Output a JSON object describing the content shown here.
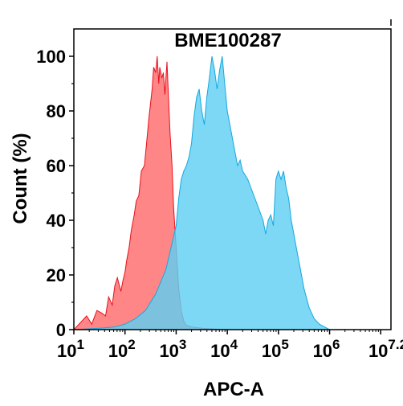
{
  "chart_data": {
    "type": "area",
    "title": "BME100287",
    "xlabel": "APC-A",
    "ylabel": "Count (%)",
    "x_scale": "log",
    "xlim": [
      1,
      7.2
    ],
    "ylim": [
      0,
      110
    ],
    "x_ticks": [
      {
        "value": 1,
        "base": "10",
        "exp": "1"
      },
      {
        "value": 2,
        "base": "10",
        "exp": "2"
      },
      {
        "value": 3,
        "base": "10",
        "exp": "3"
      },
      {
        "value": 4,
        "base": "10",
        "exp": "4"
      },
      {
        "value": 5,
        "base": "10",
        "exp": "5"
      },
      {
        "value": 6,
        "base": "10",
        "exp": "6"
      },
      {
        "value": 7.2,
        "base": "10",
        "exp": "7.2"
      }
    ],
    "y_ticks": [
      "0",
      "20",
      "40",
      "60",
      "80",
      "100"
    ],
    "series": [
      {
        "color": "#ff6b6b",
        "stroke": "#e8101a",
        "x": [
          1.0,
          1.1,
          1.25,
          1.35,
          1.45,
          1.55,
          1.62,
          1.68,
          1.75,
          1.8,
          1.85,
          1.92,
          1.96,
          2.0,
          2.03,
          2.08,
          2.12,
          2.18,
          2.22,
          2.27,
          2.32,
          2.38,
          2.42,
          2.47,
          2.5,
          2.53,
          2.56,
          2.6,
          2.63,
          2.66,
          2.68,
          2.72,
          2.75,
          2.78,
          2.82,
          2.85,
          2.88,
          2.92,
          2.95,
          3.0,
          3.05,
          3.1,
          3.15,
          3.2,
          3.3,
          3.5,
          4.0
        ],
        "y": [
          0,
          2,
          5,
          2,
          7,
          6,
          5,
          12,
          9,
          16,
          19,
          14,
          18,
          21,
          25,
          30,
          36,
          42,
          47,
          49,
          58,
          60,
          68,
          78,
          83,
          88,
          96,
          94,
          100,
          90,
          96,
          92,
          94,
          86,
          98,
          85,
          72,
          60,
          45,
          30,
          15,
          7,
          3,
          1.5,
          1,
          0.5,
          0
        ]
      },
      {
        "color": "#5fd0f3",
        "stroke": "#17a7df",
        "x": [
          1.0,
          1.5,
          1.8,
          2.0,
          2.2,
          2.4,
          2.6,
          2.8,
          2.9,
          3.0,
          3.05,
          3.1,
          3.15,
          3.2,
          3.25,
          3.3,
          3.35,
          3.4,
          3.45,
          3.5,
          3.55,
          3.6,
          3.65,
          3.7,
          3.75,
          3.8,
          3.85,
          3.9,
          3.95,
          4.0,
          4.05,
          4.1,
          4.15,
          4.2,
          4.25,
          4.3,
          4.4,
          4.5,
          4.6,
          4.7,
          4.75,
          4.8,
          4.85,
          4.9,
          4.95,
          5.0,
          5.05,
          5.1,
          5.15,
          5.2,
          5.25,
          5.3,
          5.35,
          5.4,
          5.5,
          5.6,
          5.7,
          5.8,
          5.9,
          6.0
        ],
        "y": [
          0,
          0.5,
          1,
          2,
          4,
          7,
          13,
          22,
          30,
          38,
          48,
          55,
          58,
          60,
          63,
          68,
          78,
          85,
          88,
          80,
          75,
          85,
          92,
          100,
          95,
          88,
          95,
          100,
          90,
          80,
          75,
          70,
          65,
          60,
          62,
          58,
          55,
          50,
          45,
          40,
          35,
          40,
          42,
          38,
          55,
          58,
          55,
          58,
          52,
          48,
          40,
          35,
          30,
          25,
          15,
          8,
          4,
          2,
          1,
          0
        ]
      }
    ]
  }
}
